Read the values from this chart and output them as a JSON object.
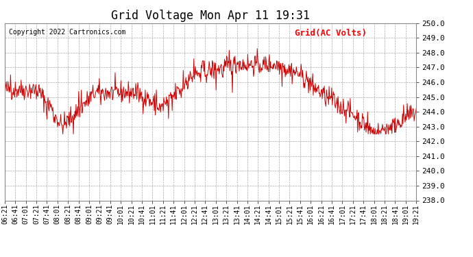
{
  "title": "Grid Voltage Mon Apr 11 19:31",
  "copyright": "Copyright 2022 Cartronics.com",
  "legend_label": "Grid(AC Volts)",
  "legend_color": "#ff0000",
  "line_color": "#cc0000",
  "background_color": "#ffffff",
  "grid_color": "#aaaaaa",
  "ylim": [
    238.0,
    250.0
  ],
  "yticks": [
    238.0,
    239.0,
    240.0,
    241.0,
    242.0,
    243.0,
    244.0,
    245.0,
    246.0,
    247.0,
    248.0,
    249.0,
    250.0
  ],
  "xtick_labels": [
    "06:21",
    "06:41",
    "07:01",
    "07:21",
    "07:41",
    "08:01",
    "08:21",
    "08:41",
    "09:01",
    "09:21",
    "09:41",
    "10:01",
    "10:21",
    "10:41",
    "11:01",
    "11:21",
    "11:41",
    "12:01",
    "12:21",
    "12:41",
    "13:01",
    "13:21",
    "13:41",
    "14:01",
    "14:21",
    "14:41",
    "15:01",
    "15:21",
    "15:41",
    "16:01",
    "16:21",
    "16:41",
    "17:01",
    "17:21",
    "17:41",
    "18:01",
    "18:21",
    "18:41",
    "19:01",
    "19:21"
  ],
  "title_fontsize": 12,
  "copyright_fontsize": 7,
  "legend_fontsize": 9,
  "tick_fontsize": 7,
  "ytick_fontsize": 8,
  "line_width": 0.7,
  "fig_width": 6.9,
  "fig_height": 3.75,
  "dpi": 100
}
